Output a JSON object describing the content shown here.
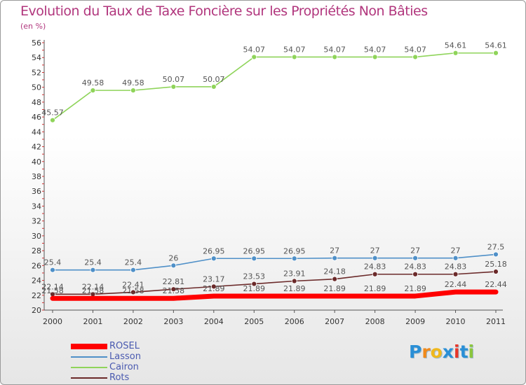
{
  "chart_data": {
    "type": "line",
    "title": "Evolution du Taux de Taxe Foncière sur les Propriétés Non Bâties",
    "subtitle": "(en %)",
    "x": [
      "2000",
      "2001",
      "2002",
      "2003",
      "2004",
      "2005",
      "2006",
      "2007",
      "2008",
      "2009",
      "2010",
      "2011"
    ],
    "ylim": [
      20,
      56
    ],
    "yticks": [
      20,
      22,
      24,
      26,
      28,
      30,
      32,
      34,
      36,
      38,
      40,
      42,
      44,
      46,
      48,
      50,
      52,
      54,
      56
    ],
    "grid": false,
    "legend_position": "bottom-left",
    "series": [
      {
        "name": "ROSEL",
        "color": "#ff0000",
        "values": [
          21.58,
          21.58,
          21.58,
          21.58,
          21.89,
          21.89,
          21.89,
          21.89,
          21.89,
          21.89,
          22.44,
          22.44
        ],
        "labels": [
          "21.58",
          "21.58",
          "21.58",
          "21.58",
          "21.89",
          "21.89",
          "21.89",
          "21.89",
          "21.89",
          "21.89",
          "22.44",
          "22.44"
        ]
      },
      {
        "name": "Lasson",
        "color": "#4f90c8",
        "values": [
          25.4,
          25.4,
          25.4,
          26,
          26.95,
          26.95,
          26.95,
          27,
          27,
          27,
          27,
          27.5
        ],
        "labels": [
          "25.4",
          "25.4",
          "25.4",
          "26",
          "26.95",
          "26.95",
          "26.95",
          "27",
          "27",
          "27",
          "27",
          "27.5"
        ]
      },
      {
        "name": "Cairon",
        "color": "#8fd45a",
        "values": [
          45.57,
          49.58,
          49.58,
          50.07,
          50.07,
          54.07,
          54.07,
          54.07,
          54.07,
          54.07,
          54.61,
          54.61
        ],
        "labels": [
          "45.57",
          "49.58",
          "49.58",
          "50.07",
          "50.07",
          "54.07",
          "54.07",
          "54.07",
          "54.07",
          "54.07",
          "54.61",
          "54.61"
        ]
      },
      {
        "name": "Rots",
        "color": "#6b2a2a",
        "values": [
          22.14,
          22.14,
          22.41,
          22.81,
          23.17,
          23.53,
          23.91,
          24.18,
          24.83,
          24.83,
          24.83,
          25.18
        ],
        "labels": [
          "22.14",
          "22.14",
          "22.41",
          "22.81",
          "23.17",
          "23.53",
          "23.91",
          "24.18",
          "24.83",
          "24.83",
          "24.83",
          "25.18"
        ]
      }
    ]
  },
  "logo": {
    "letters": [
      "P",
      "r",
      "o",
      "x",
      "i",
      "t",
      "i"
    ],
    "colors": [
      "#2a8fd6",
      "#f08a1c",
      "#f0b81c",
      "#2a8fd6",
      "#e8372a",
      "#2a8fd6",
      "#8cc63e"
    ]
  }
}
